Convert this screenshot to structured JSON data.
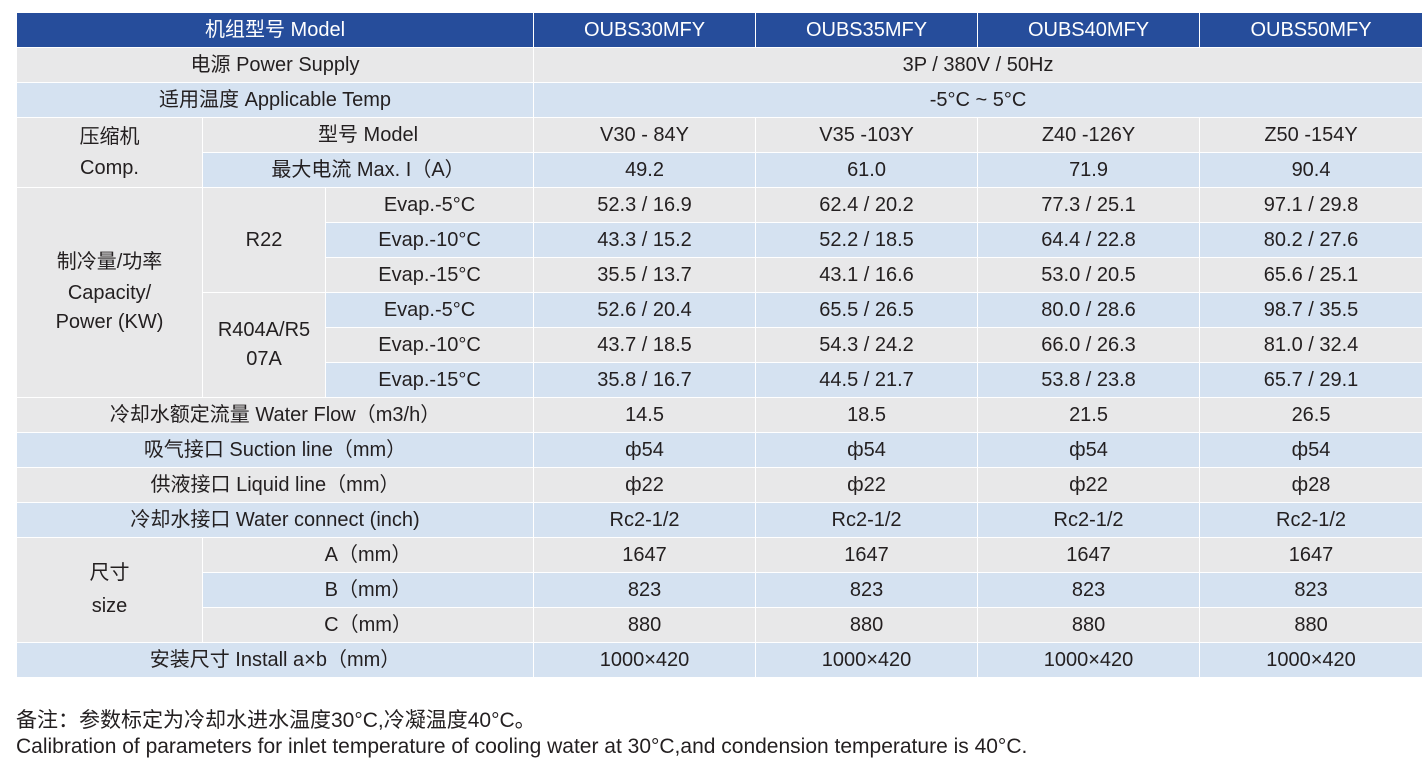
{
  "table": {
    "header": {
      "label": "机组型号 Model",
      "models": [
        "OUBS30MFY",
        "OUBS35MFY",
        "OUBS40MFY",
        "OUBS50MFY"
      ]
    },
    "power_supply": {
      "label": "电源 Power Supply",
      "value": "3P / 380V / 50Hz"
    },
    "applicable_temp": {
      "label": "适用温度 Applicable Temp",
      "value": "-5°C ~ 5°C"
    },
    "compressor": {
      "group_label_cn": "压缩机",
      "group_label_en": "Comp.",
      "model": {
        "label": "型号 Model",
        "values": [
          "V30 - 84Y",
          "V35 -103Y",
          "Z40 -126Y",
          "Z50 -154Y"
        ]
      },
      "max_current": {
        "label": "最大电流 Max. I（A）",
        "values": [
          "49.2",
          "61.0",
          "71.9",
          "90.4"
        ]
      }
    },
    "capacity": {
      "label_cn": "制冷量/功率",
      "label_en1": "Capacity/",
      "label_en2": "Power (KW)",
      "refrigerants": [
        {
          "name_line1": "R22",
          "name_line2": "",
          "rows": [
            {
              "evap": "Evap.-5°C",
              "values": [
                "52.3 / 16.9",
                "62.4 / 20.2",
                "77.3 / 25.1",
                "97.1 / 29.8"
              ]
            },
            {
              "evap": "Evap.-10°C",
              "values": [
                "43.3 / 15.2",
                "52.2 / 18.5",
                "64.4 / 22.8",
                "80.2 / 27.6"
              ]
            },
            {
              "evap": "Evap.-15°C",
              "values": [
                "35.5 / 13.7",
                "43.1 / 16.6",
                "53.0 / 20.5",
                "65.6 / 25.1"
              ]
            }
          ]
        },
        {
          "name_line1": "R404A/R5",
          "name_line2": "07A",
          "rows": [
            {
              "evap": "Evap.-5°C",
              "values": [
                "52.6 / 20.4",
                "65.5 / 26.5",
                "80.0 / 28.6",
                "98.7 / 35.5"
              ]
            },
            {
              "evap": "Evap.-10°C",
              "values": [
                "43.7 / 18.5",
                "54.3 / 24.2",
                "66.0 / 26.3",
                "81.0 / 32.4"
              ]
            },
            {
              "evap": "Evap.-15°C",
              "values": [
                "35.8 / 16.7",
                "44.5 / 21.7",
                "53.8 / 23.8",
                "65.7 / 29.1"
              ]
            }
          ]
        }
      ]
    },
    "water_flow": {
      "label": "冷却水额定流量 Water Flow（m3/h）",
      "values": [
        "14.5",
        "18.5",
        "21.5",
        "26.5"
      ]
    },
    "suction_line": {
      "label": "吸气接口 Suction line（mm）",
      "values": [
        "ф54",
        "ф54",
        "ф54",
        "ф54"
      ]
    },
    "liquid_line": {
      "label": "供液接口 Liquid line（mm）",
      "values": [
        "ф22",
        "ф22",
        "ф22",
        "ф28"
      ]
    },
    "water_connect": {
      "label": "冷却水接口 Water connect (inch)",
      "values": [
        "Rc2-1/2",
        "Rc2-1/2",
        "Rc2-1/2",
        "Rc2-1/2"
      ]
    },
    "size": {
      "label_cn": "尺寸",
      "label_en": "size",
      "rows": [
        {
          "dim": "A（mm）",
          "values": [
            "1647",
            "1647",
            "1647",
            "1647"
          ]
        },
        {
          "dim": "B（mm）",
          "values": [
            "823",
            "823",
            "823",
            "823"
          ]
        },
        {
          "dim": "C（mm）",
          "values": [
            "880",
            "880",
            "880",
            "880"
          ]
        }
      ]
    },
    "install": {
      "label": "安装尺寸 Install a×b（mm）",
      "values": [
        "1000×420",
        "1000×420",
        "1000×420",
        "1000×420"
      ]
    }
  },
  "notes": {
    "cn": "备注：参数标定为冷却水进水温度30°C,冷凝温度40°C。",
    "en": "Calibration of parameters for inlet temperature of cooling water at 30°C,and condension temperature is 40°C."
  }
}
